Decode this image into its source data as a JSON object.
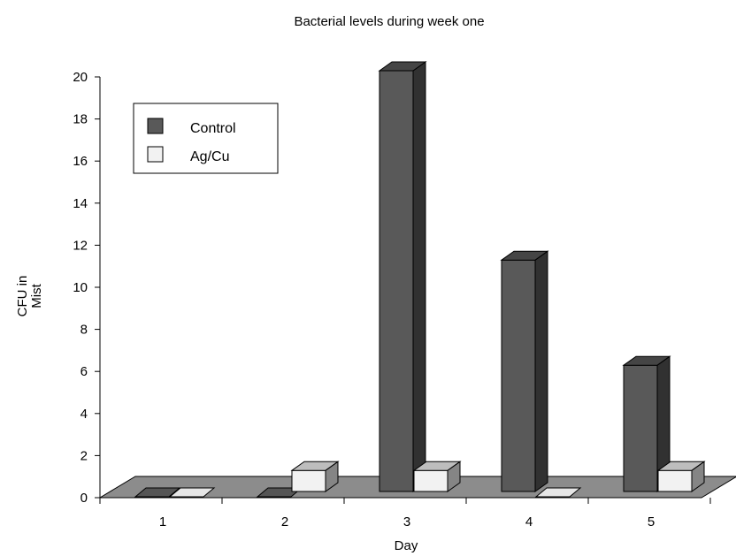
{
  "chart_data": {
    "type": "bar",
    "title": "Bacterial levels during week one",
    "xlabel": "Day",
    "ylabel_lines": [
      "CFU in",
      "Mist"
    ],
    "categories": [
      "1",
      "2",
      "3",
      "4",
      "5"
    ],
    "series": [
      {
        "name": "Control",
        "values": [
          0,
          0,
          20,
          11,
          6
        ],
        "color": "#595959"
      },
      {
        "name": "Ag/Cu",
        "values": [
          0,
          1,
          1,
          0,
          1
        ],
        "color": "#f2f2f2"
      }
    ],
    "ylim": [
      0,
      20
    ],
    "yticks": [
      0,
      2,
      4,
      6,
      8,
      10,
      12,
      14,
      16,
      18,
      20
    ],
    "grid": false,
    "legend_position": "top-left",
    "style": "3d-bar"
  }
}
